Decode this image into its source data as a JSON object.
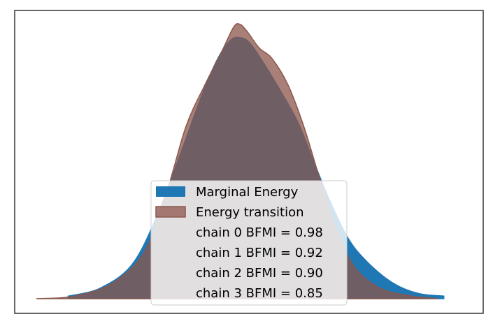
{
  "chart_data": {
    "type": "area",
    "title": "",
    "xlabel": "",
    "ylabel": "",
    "axes_ticks_visible": false,
    "grid": false,
    "legend_position": "lower center",
    "x_range": [
      -3.2,
      3.5
    ],
    "y_range": [
      0,
      1.0
    ],
    "colors": {
      "marginal": "#1f77b4",
      "transition": "#8c564b",
      "overlap": "#6f5e64"
    },
    "series": [
      {
        "name": "Marginal Energy",
        "x": [
          -2.7,
          -2.2,
          -1.7,
          -1.3,
          -0.9,
          -0.6,
          -0.35,
          -0.15,
          0.0,
          0.15,
          0.35,
          0.6,
          0.9,
          1.15,
          1.4,
          1.7,
          2.0,
          2.4,
          2.8,
          3.2
        ],
        "y": [
          0.01,
          0.04,
          0.13,
          0.32,
          0.58,
          0.78,
          0.92,
          0.99,
          1.0,
          0.98,
          0.91,
          0.81,
          0.68,
          0.53,
          0.38,
          0.23,
          0.14,
          0.06,
          0.02,
          0.01
        ]
      },
      {
        "name": "Energy transition",
        "x": [
          -3.2,
          -2.6,
          -2.0,
          -1.5,
          -1.15,
          -0.85,
          -0.55,
          -0.3,
          -0.1,
          0.0,
          0.12,
          0.3,
          0.5,
          0.75,
          1.0,
          1.25,
          1.5,
          1.8,
          2.2,
          2.7,
          3.1
        ],
        "y": [
          0.0,
          0.01,
          0.06,
          0.18,
          0.41,
          0.66,
          0.82,
          0.94,
          1.04,
          1.05,
          1.02,
          0.96,
          0.92,
          0.82,
          0.66,
          0.46,
          0.27,
          0.12,
          0.04,
          0.01,
          0.0
        ]
      }
    ],
    "legend": {
      "entries": [
        "Marginal Energy",
        "Energy transition"
      ],
      "bfmi": [
        "chain  0 BFMI = 0.98",
        "chain  1 BFMI = 0.92",
        "chain  2 BFMI = 0.90",
        "chain  3 BFMI = 0.85"
      ]
    }
  }
}
